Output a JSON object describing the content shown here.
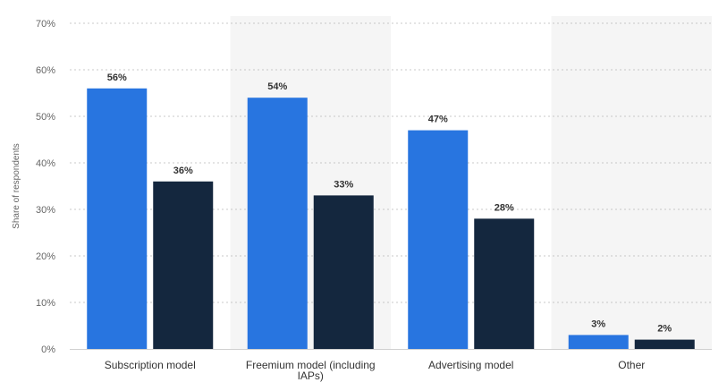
{
  "chart_data": {
    "type": "bar",
    "title": "",
    "xlabel": "",
    "ylabel": "Share of respondents",
    "ylim": [
      0,
      70
    ],
    "y_ticks": [
      "0%",
      "10%",
      "20%",
      "30%",
      "40%",
      "50%",
      "60%",
      "70%"
    ],
    "categories": [
      "Subscription model",
      "Freemium model (including IAPs)",
      "Advertising model",
      "Other"
    ],
    "category_lines": [
      [
        "Subscription model"
      ],
      [
        "Freemium model (including",
        "IAPs)"
      ],
      [
        "Advertising model"
      ],
      [
        "Other"
      ]
    ],
    "series": [
      {
        "values": [
          56,
          54,
          47,
          3
        ],
        "labels": [
          "56%",
          "54%",
          "47%",
          "3%"
        ],
        "color": "#2875e0"
      },
      {
        "values": [
          36,
          33,
          28,
          2
        ],
        "labels": [
          "36%",
          "33%",
          "28%",
          "2%"
        ],
        "color": "#14273e"
      }
    ],
    "grid": true,
    "grid_style": "dotted",
    "legend": "none",
    "band_color": "#f5f5f5"
  }
}
